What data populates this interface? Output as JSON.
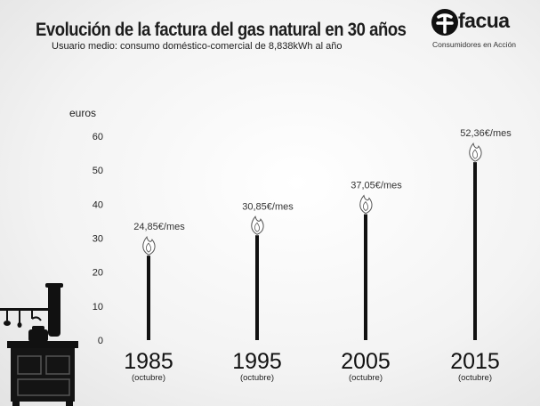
{
  "header": {
    "title": "Evolución de la factura del gas natural en 30 años",
    "subtitle": "Usuario medio: consumo doméstico-comercial de 8,838kWh al año"
  },
  "logo": {
    "name": "facua",
    "tagline": "Consumidores en Acción"
  },
  "icons": [
    "flame-icon",
    "stove-illustration",
    "facua-logo-icon"
  ],
  "colors": {
    "bar": "#111111",
    "text": "#1d1d1d",
    "flame_stroke": "#555555"
  },
  "chart_data": {
    "type": "bar",
    "title": "Evolución de la factura del gas natural en 30 años",
    "subtitle": "Usuario medio: consumo doméstico-comercial de 8,838kWh al año",
    "ylabel": "euros",
    "xlabel": "",
    "ylim": [
      0,
      60
    ],
    "yticks": [
      0,
      10,
      20,
      30,
      40,
      50,
      60
    ],
    "grid": false,
    "categories": [
      "1985",
      "1995",
      "2005",
      "2015"
    ],
    "category_sublabels": [
      "(octubre)",
      "(octubre)",
      "(octubre)",
      "(octubre)"
    ],
    "values": [
      24.85,
      30.85,
      37.05,
      52.36
    ],
    "data_labels": [
      "24,85€/mes",
      "30,85€/mes",
      "37,05€/mes",
      "52,36€/mes"
    ]
  }
}
